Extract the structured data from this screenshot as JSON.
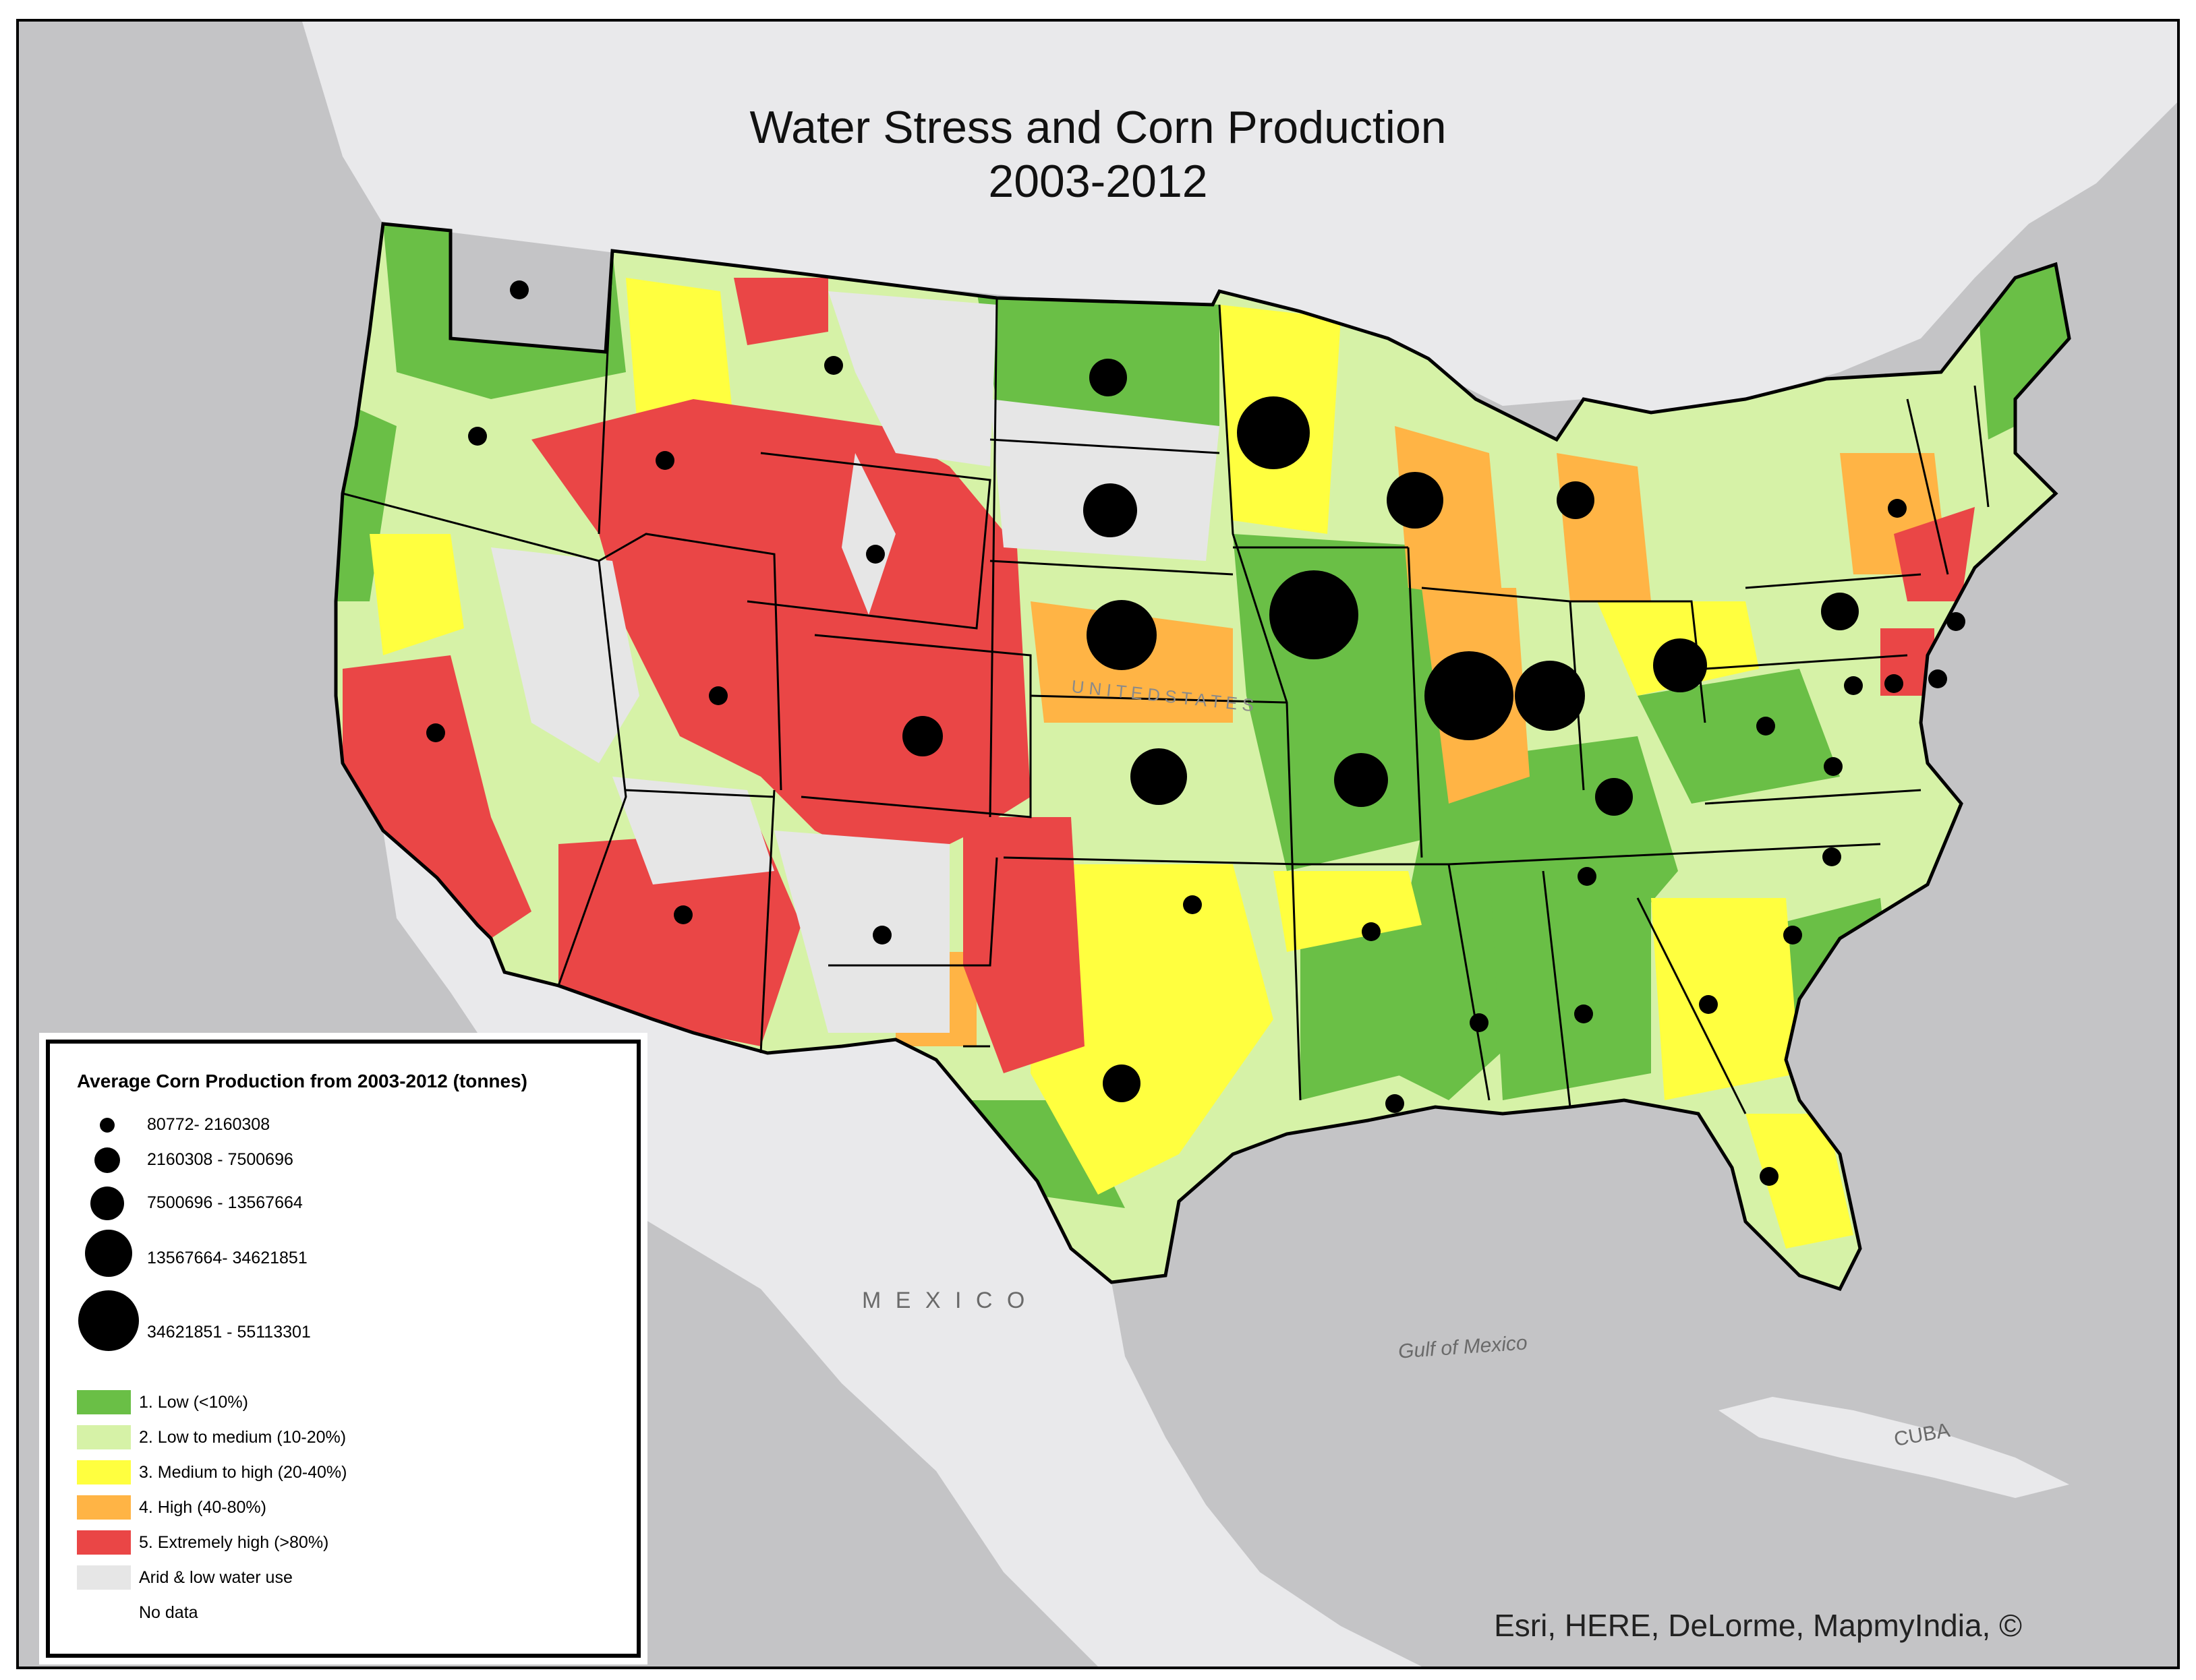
{
  "title_line1": "Water Stress and Corn Production",
  "title_line2": "2003-2012",
  "legend": {
    "title": "Average Corn Production from 2003-2012 (tonnes)",
    "size_classes": [
      "80772- 2160308",
      "2160308 - 7500696",
      "7500696 - 13567664",
      "13567664- 34621851",
      "34621851 - 55113301"
    ],
    "stress_classes": [
      {
        "label": "1. Low (<10%)",
        "color": "#6abf46"
      },
      {
        "label": "2. Low to medium (10-20%)",
        "color": "#d6f2a7"
      },
      {
        "label": "3. Medium to high (20-40%)",
        "color": "#ffff3f"
      },
      {
        "label": "4. High (40-80%)",
        "color": "#ffb445"
      },
      {
        "label": "5. Extremely high (>80%)",
        "color": "#ea4646"
      },
      {
        "label": "Arid & low water use",
        "color": "#e6e6e6"
      },
      {
        "label": "No data",
        "color": "#ffffff"
      }
    ]
  },
  "labels": {
    "mexico": "M E X I C O",
    "gulf": "Gulf of Mexico",
    "cuba": "CUBA",
    "us": "U N I T E D   S T A T E S"
  },
  "credit": "Esri, HERE, DeLorme, MapmyIndia, ©",
  "colors": {
    "water": "#c4c4c6",
    "land": "#e9e9eb",
    "low": "#6abf46",
    "low_med": "#d6f2a7",
    "med_high": "#ffff3f",
    "high": "#ffb445",
    "extreme": "#ea4646",
    "arid": "#e6e6e6"
  }
}
